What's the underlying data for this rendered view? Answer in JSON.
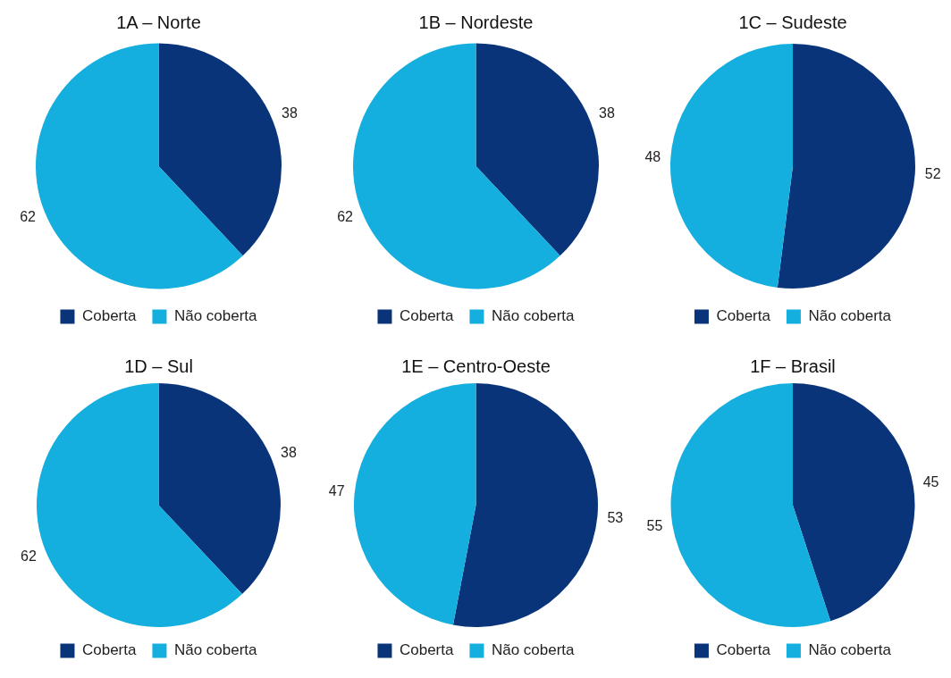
{
  "chart_data": [
    {
      "type": "pie",
      "title": "1A – Norte",
      "categories": [
        "Coberta",
        "Não coberta"
      ],
      "values": [
        38,
        62
      ],
      "colors": [
        "#0a347a",
        "#14afde"
      ],
      "legend": "bottom",
      "data_labels": true
    },
    {
      "type": "pie",
      "title": "1B – Nordeste",
      "categories": [
        "Coberta",
        "Não coberta"
      ],
      "values": [
        38,
        62
      ],
      "colors": [
        "#0a347a",
        "#14afde"
      ],
      "legend": "bottom",
      "data_labels": true
    },
    {
      "type": "pie",
      "title": "1C – Sudeste",
      "categories": [
        "Coberta",
        "Não coberta"
      ],
      "values": [
        52,
        48
      ],
      "colors": [
        "#0a347a",
        "#14afde"
      ],
      "legend": "bottom",
      "data_labels": true
    },
    {
      "type": "pie",
      "title": "1D – Sul",
      "categories": [
        "Coberta",
        "Não coberta"
      ],
      "values": [
        38,
        62
      ],
      "colors": [
        "#0a347a",
        "#14afde"
      ],
      "legend": "bottom",
      "data_labels": true
    },
    {
      "type": "pie",
      "title": "1E – Centro-Oeste",
      "categories": [
        "Coberta",
        "Não coberta"
      ],
      "values": [
        53,
        47
      ],
      "colors": [
        "#0a347a",
        "#14afde"
      ],
      "legend": "bottom",
      "data_labels": true
    },
    {
      "type": "pie",
      "title": "1F – Brasil",
      "categories": [
        "Coberta",
        "Não coberta"
      ],
      "values": [
        45,
        55
      ],
      "colors": [
        "#0a347a",
        "#14afde"
      ],
      "legend": "bottom",
      "data_labels": true
    }
  ]
}
